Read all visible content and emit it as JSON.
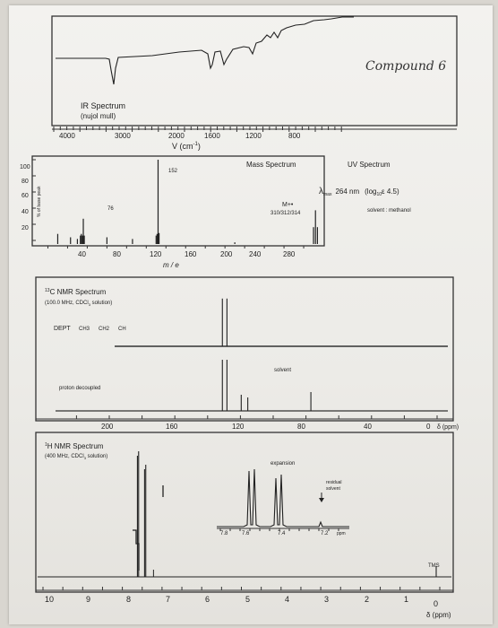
{
  "handwritten_label": "Compound 6",
  "ir": {
    "title": "IR Spectrum",
    "subtitle": "(nujol mull)",
    "x_ticks": [
      "4000",
      "3000",
      "2000",
      "1600",
      "1200",
      "800"
    ],
    "x_label": "V (cm",
    "x_label_sup": "-1",
    "x_label_close": ")"
  },
  "ms": {
    "title": "Mass Spectrum",
    "y_ticks": [
      "100",
      "80",
      "60",
      "40",
      "20"
    ],
    "y_label": "% of base peak",
    "x_ticks": [
      "40",
      "80",
      "120",
      "160",
      "200",
      "240",
      "280"
    ],
    "x_label": "m / e",
    "peak_labels": {
      "main": "152",
      "secondary": "76"
    },
    "molecular_ion": "M+•",
    "molecular_ion_values": "310/312/314",
    "chart_data": {
      "type": "bar",
      "x": [
        50,
        63,
        70,
        73,
        74,
        75,
        76,
        77,
        100,
        126,
        150,
        151,
        152,
        153,
        230,
        310,
        312,
        314
      ],
      "values": [
        12,
        8,
        6,
        10,
        12,
        10,
        30,
        10,
        8,
        6,
        10,
        12,
        100,
        13,
        2,
        20,
        40,
        20
      ],
      "xlabel": "m / e",
      "ylabel": "% of base peak",
      "xlim": [
        25,
        320
      ],
      "ylim": [
        0,
        100
      ]
    }
  },
  "uv": {
    "title": "UV Spectrum",
    "lambda": "λ",
    "lambda_sub": "max",
    "value": "264 nm",
    "log_text": "(log",
    "log_sub": "10",
    "epsilon": "ε 4.5)",
    "solvent": "solvent : methanol"
  },
  "c13": {
    "title_pre": "13",
    "title": "C NMR Spectrum",
    "subtitle": "(100.0 MHz, CDCl",
    "subtitle_sub": "3",
    "subtitle_end": " solution)",
    "dept_label": "DEPT",
    "dept_ch3": "CH3",
    "dept_ch2": "CH2",
    "dept_ch": "CH",
    "proton_decoupled": "proton decoupled",
    "solvent_label": "solvent",
    "x_ticks": [
      "200",
      "160",
      "120",
      "80",
      "40",
      "0"
    ],
    "x_unit": "δ (ppm)",
    "chart_data": {
      "type": "bar",
      "x": [
        131.0,
        128.2,
        119.5,
        115.5,
        77.0
      ],
      "values": [
        95,
        95,
        30,
        25,
        35
      ],
      "dept_x": [
        131.0,
        128.2
      ],
      "dept_values": [
        95,
        95
      ],
      "xlim": [
        0,
        220
      ]
    }
  },
  "h1": {
    "title_pre": "1",
    "title": "H NMR Spectrum",
    "subtitle": "(400 MHz, CDCl",
    "subtitle_sub": "3",
    "subtitle_end": " solution)",
    "expansion_label": "expansion",
    "residual_solvent": "residual",
    "residual_solvent2": "solvent",
    "expansion_ticks": [
      "7.8",
      "7.6",
      "7.4",
      "7.2"
    ],
    "expansion_unit": "ppm",
    "tms": "TMS",
    "x_ticks": [
      "10",
      "9",
      "8",
      "7",
      "6",
      "5",
      "4",
      "3",
      "2",
      "1",
      "0"
    ],
    "x_unit": "δ (ppm)",
    "chart_data": {
      "type": "line",
      "peaks_ppm": [
        7.62,
        7.59,
        7.44,
        7.41,
        7.26,
        0.0
      ],
      "xlim": [
        10,
        0
      ]
    }
  }
}
